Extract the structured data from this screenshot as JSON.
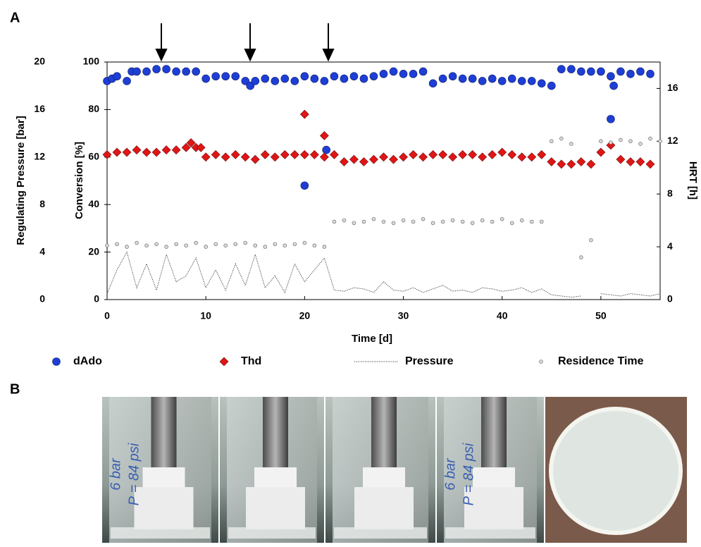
{
  "panel_labels": [
    "A",
    "B"
  ],
  "chart_data": {
    "type": "scatter",
    "xlabel": "Time [d]",
    "ylabel": "Conversion [%]",
    "y2label": "HRT [h]",
    "y3label": "Regulating Pressure [bar]",
    "xlim": [
      0,
      56
    ],
    "xticks": [
      0,
      10,
      20,
      30,
      40,
      50
    ],
    "ylim": [
      0,
      100
    ],
    "yticks": [
      0,
      20,
      40,
      60,
      80,
      100
    ],
    "y2lim": [
      0,
      18
    ],
    "y2ticks": [
      0,
      4,
      8,
      12,
      16
    ],
    "y3lim": [
      0,
      20
    ],
    "y3ticks": [
      0,
      4,
      8,
      12,
      16,
      20
    ],
    "series": [
      {
        "name": "dAdo",
        "color": "#1e3ed6",
        "marker": "circle",
        "x": [
          0,
          0.5,
          1,
          2,
          2.5,
          3,
          4,
          5,
          6,
          7,
          8,
          9,
          10,
          11,
          12,
          13,
          14,
          14.5,
          15,
          16,
          17,
          18,
          19,
          20,
          21,
          22,
          23,
          24,
          25,
          26,
          27,
          28,
          29,
          30,
          31,
          32,
          33,
          34,
          35,
          36,
          37,
          38,
          39,
          40,
          41,
          42,
          43,
          44,
          45,
          46,
          47,
          48,
          49,
          50,
          51,
          52,
          53,
          54,
          55,
          20,
          22.2,
          51,
          51.3
        ],
        "values": [
          92,
          93,
          94,
          92,
          96,
          96,
          96,
          97,
          97,
          96,
          96,
          96,
          93,
          94,
          94,
          94,
          92,
          90,
          92,
          93,
          92,
          93,
          92,
          94,
          93,
          92,
          94,
          93,
          94,
          93,
          94,
          95,
          96,
          95,
          95,
          96,
          91,
          93,
          94,
          93,
          93,
          92,
          93,
          92,
          93,
          92,
          92,
          91,
          90,
          97,
          97,
          96,
          96,
          96,
          94,
          96,
          95,
          96,
          95,
          48,
          63,
          76,
          90
        ]
      },
      {
        "name": "Thd",
        "color": "#e01515",
        "marker": "diamond",
        "x": [
          0,
          1,
          2,
          3,
          4,
          5,
          6,
          7,
          8,
          8.5,
          9,
          9.5,
          10,
          11,
          12,
          13,
          14,
          15,
          16,
          17,
          18,
          19,
          20,
          21,
          22,
          23,
          24,
          25,
          26,
          27,
          28,
          29,
          30,
          31,
          32,
          33,
          34,
          35,
          36,
          37,
          38,
          39,
          40,
          41,
          42,
          43,
          44,
          45,
          46,
          47,
          48,
          49,
          50,
          51,
          52,
          53,
          54,
          55,
          20,
          22
        ],
        "values": [
          61,
          62,
          62,
          63,
          62,
          62,
          63,
          63,
          64,
          66,
          64,
          64,
          60,
          61,
          60,
          61,
          60,
          59,
          61,
          60,
          61,
          61,
          61,
          61,
          60,
          61,
          58,
          59,
          58,
          59,
          60,
          59,
          60,
          61,
          60,
          61,
          61,
          60,
          61,
          61,
          60,
          61,
          62,
          61,
          60,
          60,
          61,
          58,
          57,
          57,
          58,
          57,
          62,
          65,
          59,
          58,
          58,
          57,
          78,
          69
        ]
      },
      {
        "name": "Pressure",
        "color": "#222222",
        "marker": "dotted-line",
        "axis": "y3",
        "x": [
          0,
          1,
          2,
          3,
          4,
          5,
          6,
          7,
          8,
          9,
          10,
          11,
          12,
          13,
          14,
          15,
          16,
          17,
          18,
          19,
          20,
          21,
          22,
          23,
          24,
          25,
          26,
          27,
          28,
          29,
          30,
          31,
          32,
          33,
          34,
          35,
          36,
          37,
          38,
          39,
          40,
          41,
          42,
          43,
          44,
          45,
          46,
          47,
          48,
          49,
          50,
          51,
          52,
          53,
          54,
          55,
          56
        ],
        "values": [
          0.5,
          2.5,
          4,
          1,
          3,
          0.8,
          3.8,
          1.5,
          2,
          3.5,
          1,
          2.5,
          0.8,
          3,
          1.2,
          3.8,
          1,
          2,
          0.6,
          3,
          1.5,
          2.5,
          3.5,
          0.8,
          0.7,
          1,
          0.9,
          0.6,
          1.5,
          0.8,
          0.7,
          1,
          0.6,
          0.9,
          1.2,
          0.7,
          0.8,
          0.6,
          1,
          0.9,
          0.7,
          0.8,
          1,
          0.6,
          0.9,
          0.4,
          0.3,
          0.2,
          0.3,
          null,
          0.5,
          0.4,
          0.3,
          0.5,
          0.4,
          0.3,
          0.5
        ]
      },
      {
        "name": "Residence Time",
        "color": "#777777",
        "marker": "dot",
        "axis": "y2",
        "x": [
          0,
          1,
          2,
          3,
          4,
          5,
          6,
          7,
          8,
          9,
          10,
          11,
          12,
          13,
          14,
          15,
          16,
          17,
          18,
          19,
          20,
          21,
          22,
          23,
          24,
          25,
          26,
          27,
          28,
          29,
          30,
          31,
          32,
          33,
          34,
          35,
          36,
          37,
          38,
          39,
          40,
          41,
          42,
          43,
          44,
          45,
          46,
          47,
          48,
          49,
          50,
          51,
          52,
          53,
          54,
          55,
          56
        ],
        "values": [
          4.1,
          4.2,
          4.0,
          4.3,
          4.1,
          4.2,
          4.0,
          4.2,
          4.1,
          4.3,
          4.0,
          4.2,
          4.1,
          4.2,
          4.3,
          4.1,
          4.0,
          4.2,
          4.1,
          4.2,
          4.3,
          4.1,
          4.0,
          5.9,
          6.0,
          5.8,
          5.9,
          6.1,
          5.9,
          5.8,
          6.0,
          5.9,
          6.1,
          5.8,
          5.9,
          6.0,
          5.9,
          5.8,
          6.0,
          5.9,
          6.1,
          5.8,
          6.0,
          5.9,
          5.9,
          12.0,
          12.2,
          11.8,
          3.2,
          4.5,
          12.0,
          11.9,
          12.1,
          12.0,
          11.8,
          12.2,
          12.0
        ]
      }
    ]
  },
  "photos": [
    {
      "texts": [
        "6 bar",
        "P = 84 psi"
      ]
    },
    {
      "texts": []
    },
    {
      "texts": []
    },
    {
      "texts": [
        "6 bar",
        "P = 84 psi"
      ]
    },
    {
      "texts": []
    }
  ]
}
